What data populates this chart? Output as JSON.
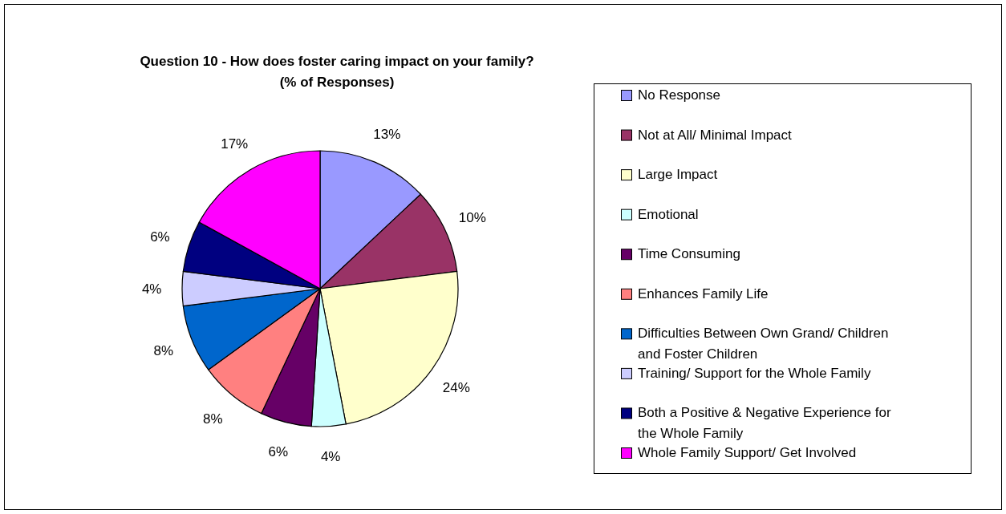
{
  "chart_data": {
    "type": "pie",
    "title": "Question 10 - How does foster caring impact on your family?",
    "subtitle": "(% of Responses)",
    "categories": [
      "No Response",
      "Not at All/ Minimal Impact",
      "Large Impact",
      "Emotional",
      "Time Consuming",
      "Enhances Family Life",
      "Difficulties Between Own Grand/ Children and Foster Children",
      "Training/ Support for the Whole Family",
      "Both a Positive & Negative Experience for the Whole Family",
      "Whole Family Support/ Get Involved"
    ],
    "values": [
      13,
      10,
      24,
      4,
      6,
      8,
      8,
      4,
      6,
      17
    ],
    "colors": [
      "#9999ff",
      "#993366",
      "#ffffcc",
      "#ccffff",
      "#660066",
      "#ff8080",
      "#0066cc",
      "#ccccff",
      "#000080",
      "#ff00ff"
    ],
    "value_labels": [
      "13%",
      "10%",
      "24%",
      "4%",
      "6%",
      "8%",
      "8%",
      "4%",
      "6%",
      "17%"
    ],
    "legend": "right"
  }
}
